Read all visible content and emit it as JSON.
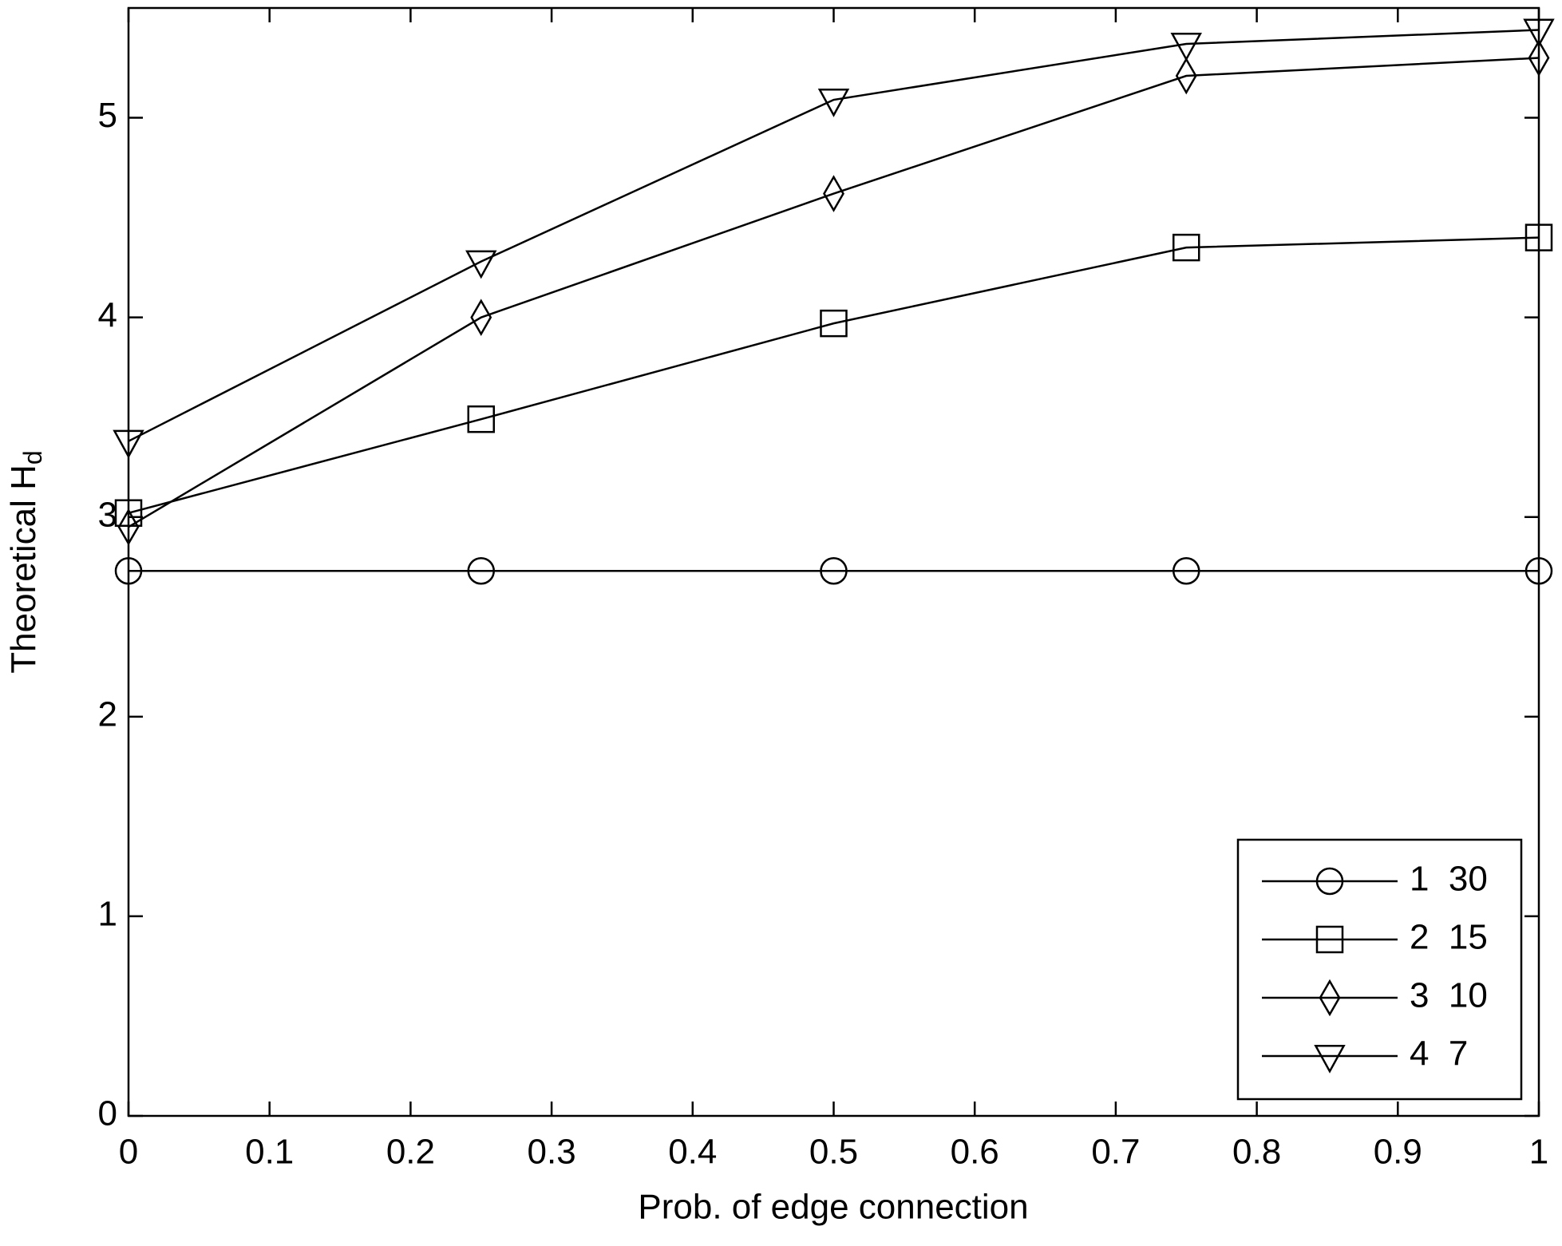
{
  "chart_data": {
    "type": "line",
    "xlabel": "Prob. of edge connection",
    "ylabel": "Theoretical H",
    "ylabel_subscript": "d",
    "x": [
      0,
      0.25,
      0.5,
      0.75,
      1
    ],
    "series": [
      {
        "name": "1  30",
        "marker": "circle",
        "color": "#000000",
        "values": [
          2.73,
          2.73,
          2.73,
          2.73,
          2.73
        ]
      },
      {
        "name": "2  15",
        "marker": "square",
        "color": "#000000",
        "values": [
          3.02,
          3.49,
          3.97,
          4.35,
          4.4
        ]
      },
      {
        "name": "3  10",
        "marker": "diamond",
        "color": "#000000",
        "values": [
          2.95,
          4.0,
          4.62,
          5.21,
          5.3
        ]
      },
      {
        "name": "4  7",
        "marker": "triangle-down",
        "color": "#000000",
        "values": [
          3.38,
          4.28,
          5.09,
          5.37,
          5.44
        ]
      }
    ],
    "xlim": [
      0,
      1
    ],
    "xticks": [
      0,
      0.1,
      0.2,
      0.3,
      0.4,
      0.5,
      0.6,
      0.7,
      0.8,
      0.9,
      1
    ],
    "ylim": [
      0,
      5.55
    ],
    "yticks": [
      0,
      1,
      2,
      3,
      4,
      5
    ],
    "grid": false,
    "legend": "lower right"
  }
}
